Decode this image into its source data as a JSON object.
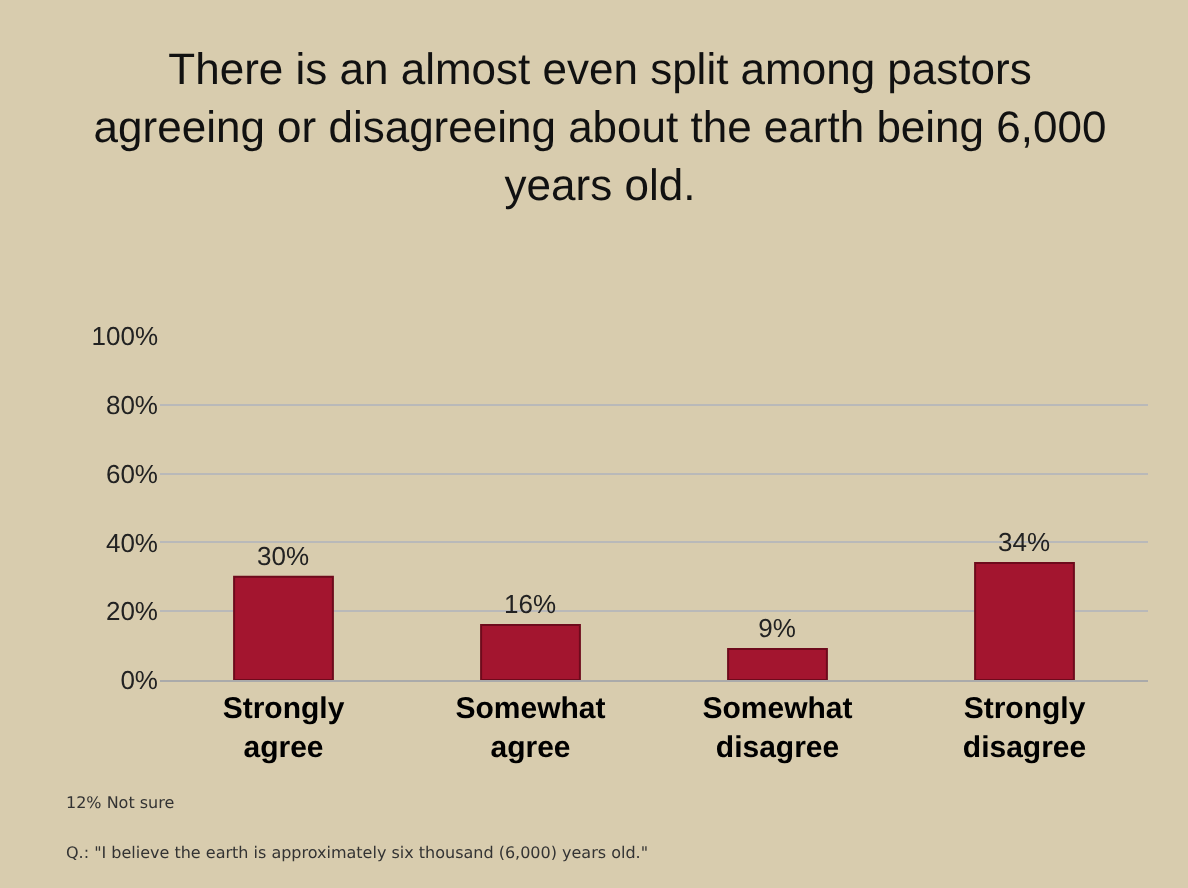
{
  "chart_data": {
    "type": "bar",
    "title": "There is an almost even split among pastors agreeing or disagreeing about the earth being 6,000 years old.",
    "categories": [
      "Strongly agree",
      "Somewhat agree",
      "Somewhat disagree",
      "Strongly disagree"
    ],
    "values": [
      30,
      16,
      9,
      34
    ],
    "value_labels": [
      "30%",
      "16%",
      "9%",
      "34%"
    ],
    "color": "#a3152f",
    "ylim": [
      0,
      100
    ],
    "yticks": [
      {
        "value": 0,
        "label": "0%"
      },
      {
        "value": 20,
        "label": "20%"
      },
      {
        "value": 40,
        "label": "40%"
      },
      {
        "value": 60,
        "label": "60%"
      },
      {
        "value": 80,
        "label": "80%"
      },
      {
        "value": 100,
        "label": "100%"
      }
    ],
    "grid": "y",
    "annotations": [
      "12% Not sure",
      "Q.: \"I believe the earth is approximately six thousand (6,000) years old.\""
    ]
  }
}
